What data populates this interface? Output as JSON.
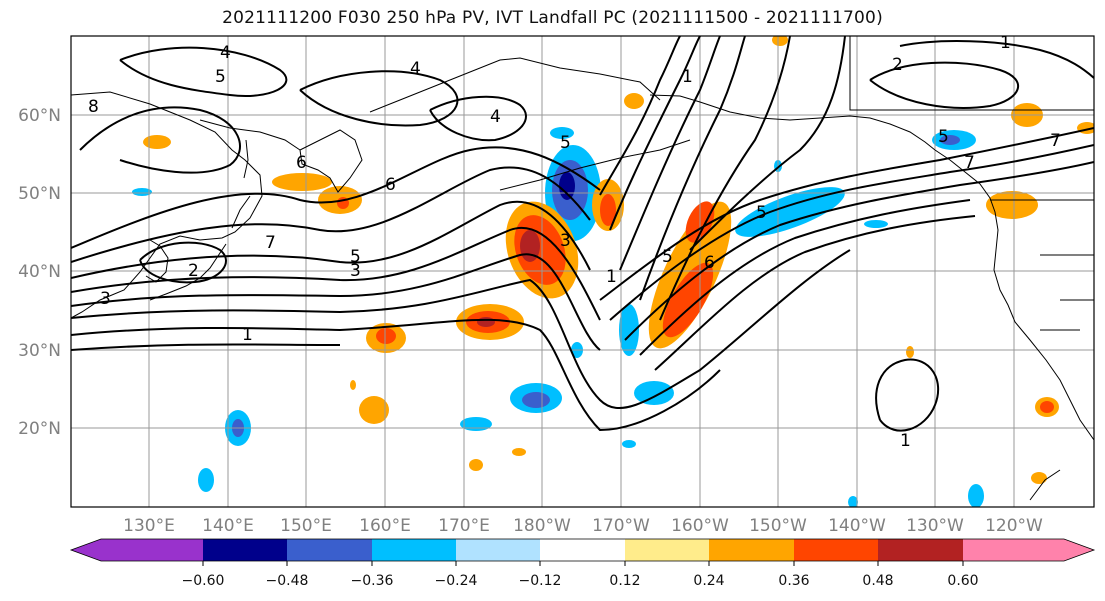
{
  "title": "2021111200 F030 250 hPa PV, IVT Landfall PC (2021111500 - 2021111700)",
  "lat_labels": [
    "60°N",
    "50°N",
    "40°N",
    "30°N",
    "20°N"
  ],
  "lon_labels": [
    "130°E",
    "140°E",
    "150°E",
    "160°E",
    "170°E",
    "180°W",
    "170°W",
    "160°W",
    "150°W",
    "140°W",
    "130°W",
    "120°W"
  ],
  "colorbar": {
    "tick_labels": [
      "−0.60",
      "−0.48",
      "−0.36",
      "−0.24",
      "−0.12",
      "0.12",
      "0.24",
      "0.36",
      "0.48",
      "0.60"
    ],
    "colors": [
      "#9932cc",
      "#00008b",
      "#3a5fcd",
      "#00bfff",
      "#b0e2ff",
      "#ffffff",
      "#ffec8b",
      "#ffa500",
      "#ff4500",
      "#b22222",
      "#ff82ab"
    ]
  },
  "contour_labels": [
    "4",
    "5",
    "8",
    "7",
    "6",
    "5",
    "4",
    "6",
    "3",
    "2",
    "1",
    "4",
    "5",
    "3",
    "1",
    "5",
    "6",
    "1",
    "5",
    "7",
    "7",
    "1",
    "3",
    "5",
    "2",
    "1"
  ]
}
